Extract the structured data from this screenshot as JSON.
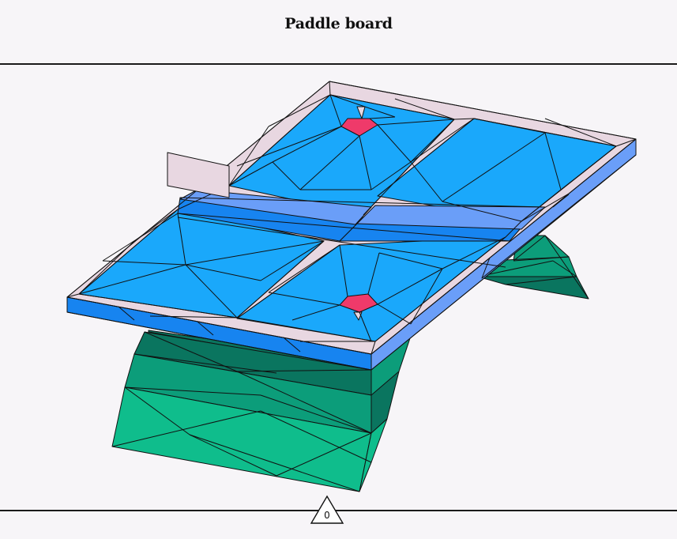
{
  "title": "Paddle board",
  "page_number": "0",
  "colors": {
    "background": "#f7f5f8",
    "deck_blue": "#1aa8fb",
    "side_blue": "#1784f0",
    "side_light": "#6a9ef8",
    "rail_pink": "#e8d7e1",
    "handle_red": "#ef3a6a",
    "hull_green": "#0fbd8c",
    "hull_green_mid": "#0c9d7a",
    "hull_green_dark": "#0a755f"
  }
}
